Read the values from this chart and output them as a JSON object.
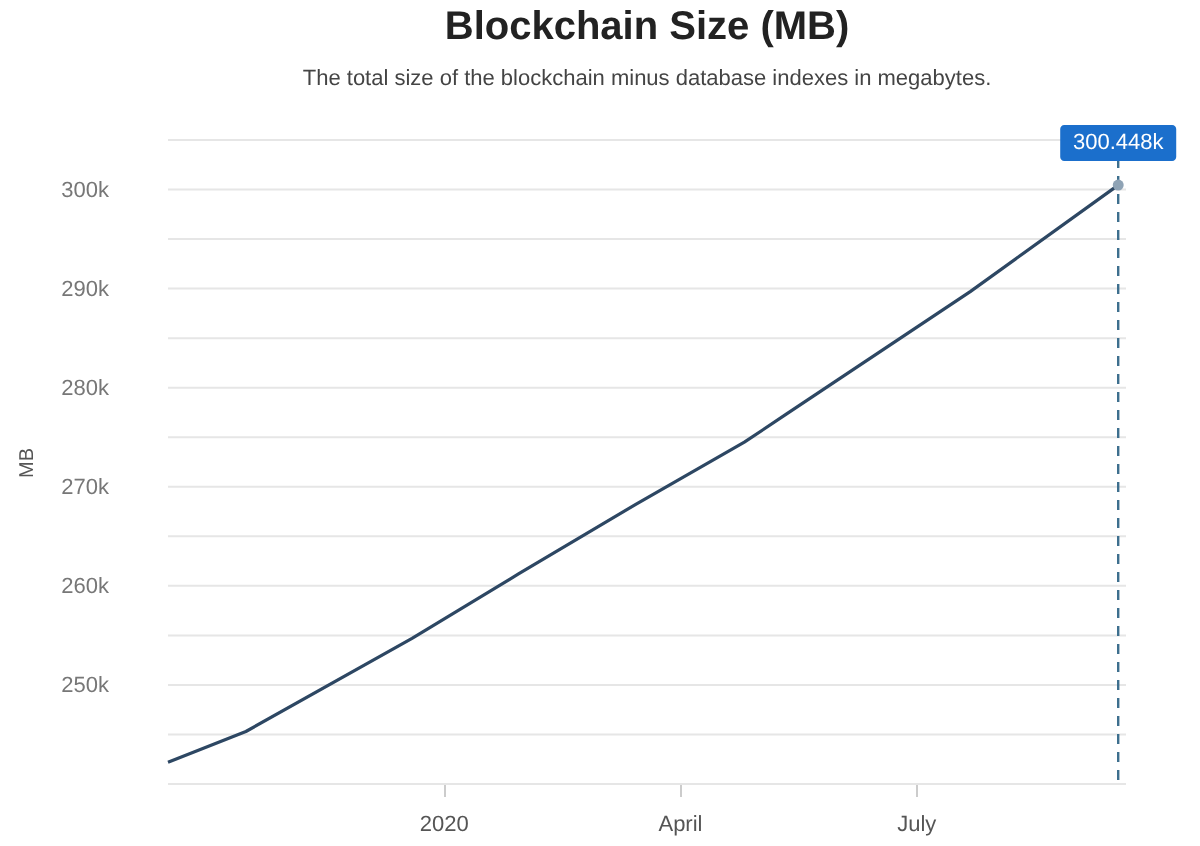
{
  "chart_data": {
    "type": "line",
    "title": "Blockchain Size (MB)",
    "subtitle": "The total size of the blockchain minus database indexes in megabytes.",
    "ylabel": "MB",
    "x": [
      "2019-09-17",
      "2019-10-17",
      "2019-12-20",
      "2020-01-30",
      "2020-03-15",
      "2020-04-26",
      "2020-05-12",
      "2020-07-22",
      "2020-09-17"
    ],
    "series": [
      {
        "color": "#2d4763",
        "values": [
          242200,
          245300,
          254700,
          261200,
          268200,
          274500,
          277300,
          289700,
          300448
        ]
      }
    ],
    "xlim": [
      "2019-09-17",
      "2020-09-20"
    ],
    "xticks": [
      {
        "value": "2020-01-01",
        "label": "2020"
      },
      {
        "value": "2020-04-01",
        "label": "April"
      },
      {
        "value": "2020-07-01",
        "label": "July"
      }
    ],
    "ylim": [
      240000,
      305000
    ],
    "yticks": [
      {
        "value": 240000,
        "label": null
      },
      {
        "value": 245000,
        "label": null
      },
      {
        "value": 250000,
        "label": "250k"
      },
      {
        "value": 255000,
        "label": null
      },
      {
        "value": 260000,
        "label": "260k"
      },
      {
        "value": 265000,
        "label": null
      },
      {
        "value": 270000,
        "label": "270k"
      },
      {
        "value": 275000,
        "label": null
      },
      {
        "value": 280000,
        "label": "280k"
      },
      {
        "value": 285000,
        "label": null
      },
      {
        "value": 290000,
        "label": "290k"
      },
      {
        "value": 295000,
        "label": null
      },
      {
        "value": 300000,
        "label": "300k"
      },
      {
        "value": 305000,
        "label": null
      }
    ],
    "grid": "y",
    "marker": "none",
    "line_style": "solid",
    "ref_lines": [
      {
        "axis": "x",
        "value": "2020-09-17",
        "color": "#3d6f8e",
        "line_style": "dashed"
      }
    ],
    "annotations": [
      {
        "text": "300.448k",
        "x": "2020-09-17",
        "y": 300448
      }
    ]
  }
}
